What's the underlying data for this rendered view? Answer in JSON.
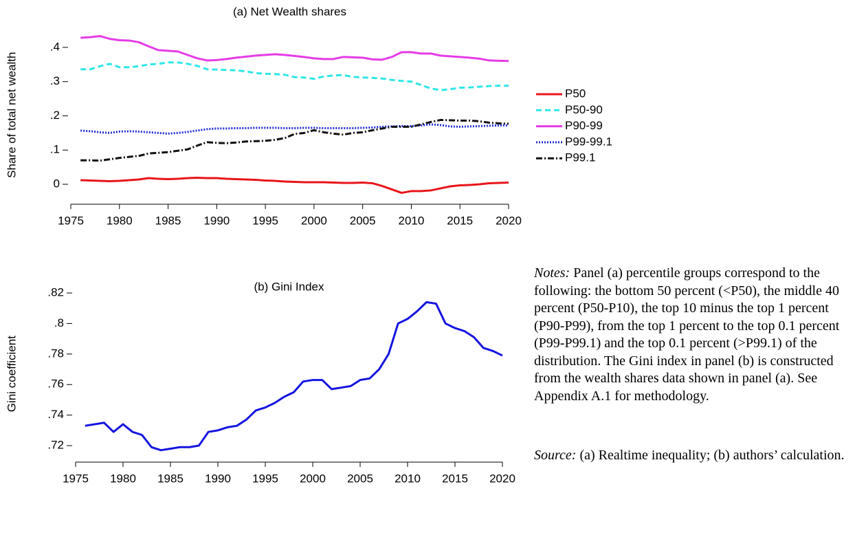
{
  "chart_data": [
    {
      "type": "line",
      "title": "(a) Net Wealth shares",
      "y_label": "Share of total net wealth",
      "x": [
        1976,
        1977,
        1978,
        1979,
        1980,
        1981,
        1982,
        1983,
        1984,
        1985,
        1986,
        1987,
        1988,
        1989,
        1990,
        1991,
        1992,
        1993,
        1994,
        1995,
        1996,
        1997,
        1998,
        1999,
        2000,
        2001,
        2002,
        2003,
        2004,
        2005,
        2006,
        2007,
        2008,
        2009,
        2010,
        2011,
        2012,
        2013,
        2014,
        2015,
        2016,
        2017,
        2018,
        2019,
        2020
      ],
      "series": [
        {
          "name": "P50",
          "color": "#e8141a",
          "line_style": "solid",
          "values": [
            0.012,
            0.011,
            0.01,
            0.009,
            0.01,
            0.012,
            0.014,
            0.018,
            0.016,
            0.015,
            0.016,
            0.018,
            0.019,
            0.018,
            0.018,
            0.016,
            0.015,
            0.014,
            0.013,
            0.011,
            0.01,
            0.008,
            0.007,
            0.006,
            0.006,
            0.006,
            0.005,
            0.004,
            0.004,
            0.005,
            0.003,
            -0.005,
            -0.015,
            -0.025,
            -0.02,
            -0.02,
            -0.018,
            -0.012,
            -0.006,
            -0.003,
            -0.002,
            0.0,
            0.003,
            0.004,
            0.005
          ]
        },
        {
          "name": "P50-90",
          "color": "#2ee6e8",
          "line_style": "dashed",
          "values": [
            0.336,
            0.336,
            0.345,
            0.352,
            0.342,
            0.342,
            0.345,
            0.35,
            0.352,
            0.356,
            0.356,
            0.352,
            0.346,
            0.336,
            0.335,
            0.334,
            0.333,
            0.33,
            0.325,
            0.323,
            0.322,
            0.32,
            0.313,
            0.312,
            0.308,
            0.315,
            0.318,
            0.319,
            0.314,
            0.312,
            0.311,
            0.309,
            0.305,
            0.302,
            0.3,
            0.29,
            0.28,
            0.275,
            0.278,
            0.282,
            0.283,
            0.285,
            0.287,
            0.288,
            0.288
          ]
        },
        {
          "name": "P90-99",
          "color": "#e53be6",
          "line_style": "solid",
          "values": [
            0.428,
            0.43,
            0.433,
            0.425,
            0.421,
            0.42,
            0.415,
            0.403,
            0.392,
            0.39,
            0.388,
            0.378,
            0.368,
            0.362,
            0.363,
            0.366,
            0.37,
            0.373,
            0.376,
            0.378,
            0.38,
            0.378,
            0.375,
            0.372,
            0.368,
            0.366,
            0.366,
            0.372,
            0.371,
            0.37,
            0.365,
            0.364,
            0.372,
            0.386,
            0.386,
            0.382,
            0.382,
            0.376,
            0.374,
            0.372,
            0.37,
            0.367,
            0.362,
            0.361,
            0.36
          ]
        },
        {
          "name": "P99-99.1",
          "color": "#1e2ad6",
          "line_style": "dotted",
          "values": [
            0.157,
            0.155,
            0.152,
            0.15,
            0.154,
            0.155,
            0.154,
            0.152,
            0.15,
            0.148,
            0.15,
            0.153,
            0.157,
            0.161,
            0.163,
            0.163,
            0.164,
            0.164,
            0.165,
            0.165,
            0.165,
            0.164,
            0.164,
            0.165,
            0.165,
            0.164,
            0.164,
            0.164,
            0.164,
            0.165,
            0.166,
            0.168,
            0.169,
            0.17,
            0.17,
            0.172,
            0.175,
            0.173,
            0.169,
            0.168,
            0.169,
            0.17,
            0.171,
            0.172,
            0.172
          ]
        },
        {
          "name": "P99.1",
          "color": "#111111",
          "line_style": "dashdot",
          "values": [
            0.07,
            0.07,
            0.069,
            0.073,
            0.077,
            0.08,
            0.083,
            0.09,
            0.092,
            0.094,
            0.098,
            0.102,
            0.113,
            0.123,
            0.121,
            0.12,
            0.122,
            0.125,
            0.126,
            0.127,
            0.13,
            0.135,
            0.147,
            0.15,
            0.158,
            0.152,
            0.148,
            0.145,
            0.15,
            0.152,
            0.158,
            0.163,
            0.168,
            0.168,
            0.168,
            0.175,
            0.182,
            0.188,
            0.187,
            0.186,
            0.186,
            0.184,
            0.18,
            0.178,
            0.177
          ]
        }
      ],
      "xlim": [
        1975,
        2020
      ],
      "xticks": [
        1975,
        1980,
        1985,
        1990,
        1995,
        2000,
        2005,
        2010,
        2015,
        2020
      ],
      "ylim": [
        -0.035,
        0.44
      ],
      "yticks": [
        {
          "value": 0.4,
          "label": ".4"
        },
        {
          "value": 0.3,
          "label": ".3"
        },
        {
          "value": 0.2,
          "label": ".2"
        },
        {
          "value": 0.1,
          "label": ".1"
        },
        0
      ],
      "legend": "right"
    },
    {
      "type": "line",
      "title": "(b) Gini Index",
      "y_label": "Gini coefficient",
      "x": [
        1976,
        1977,
        1978,
        1979,
        1980,
        1981,
        1982,
        1983,
        1984,
        1985,
        1986,
        1987,
        1988,
        1989,
        1990,
        1991,
        1992,
        1993,
        1994,
        1995,
        1996,
        1997,
        1998,
        1999,
        2000,
        2001,
        2002,
        2003,
        2004,
        2005,
        2006,
        2007,
        2008,
        2009,
        2010,
        2011,
        2012,
        2013,
        2014,
        2015,
        2016,
        2017,
        2018,
        2019,
        2020
      ],
      "series": [
        {
          "color": "#1414e0",
          "line_style": "solid",
          "values": [
            0.733,
            0.734,
            0.735,
            0.729,
            0.734,
            0.729,
            0.727,
            0.719,
            0.717,
            0.718,
            0.719,
            0.719,
            0.72,
            0.729,
            0.73,
            0.732,
            0.733,
            0.737,
            0.743,
            0.745,
            0.748,
            0.752,
            0.755,
            0.762,
            0.763,
            0.763,
            0.757,
            0.758,
            0.759,
            0.763,
            0.764,
            0.77,
            0.78,
            0.8,
            0.803,
            0.808,
            0.814,
            0.813,
            0.8,
            0.797,
            0.795,
            0.791,
            0.784,
            0.782,
            0.779
          ]
        }
      ],
      "xlim": [
        1975,
        2020
      ],
      "xticks": [
        1975,
        1980,
        1985,
        1990,
        1995,
        2000,
        2005,
        2010,
        2015,
        2020
      ],
      "ylim": [
        0.712,
        0.822
      ],
      "yticks": [
        {
          "value": 0.72,
          "label": ".72"
        },
        {
          "value": 0.74,
          "label": ".74"
        },
        {
          "value": 0.76,
          "label": ".76"
        },
        {
          "value": 0.78,
          "label": ".78"
        },
        {
          "value": 0.8,
          "label": ".8"
        },
        {
          "value": 0.82,
          "label": ".82"
        }
      ]
    }
  ],
  "notes": {
    "label": "Notes:",
    "text": "Panel (a) percentile groups correspond to the following: the bottom 50 percent (<P50), the middle 40 percent (P50-P10), the top 10 minus the top 1 percent (P90-P99), from the top 1 percent to the top 0.1 percent (P99-P99.1) and the top 0.1 percent (>P99.1) of the distribution. The Gini index in panel (b) is constructed from the wealth shares data shown in panel (a). See Appendix A.1 for methodology."
  },
  "source": {
    "label": "Source:",
    "text": "(a) Realtime inequality; (b) authors’ calculation."
  }
}
